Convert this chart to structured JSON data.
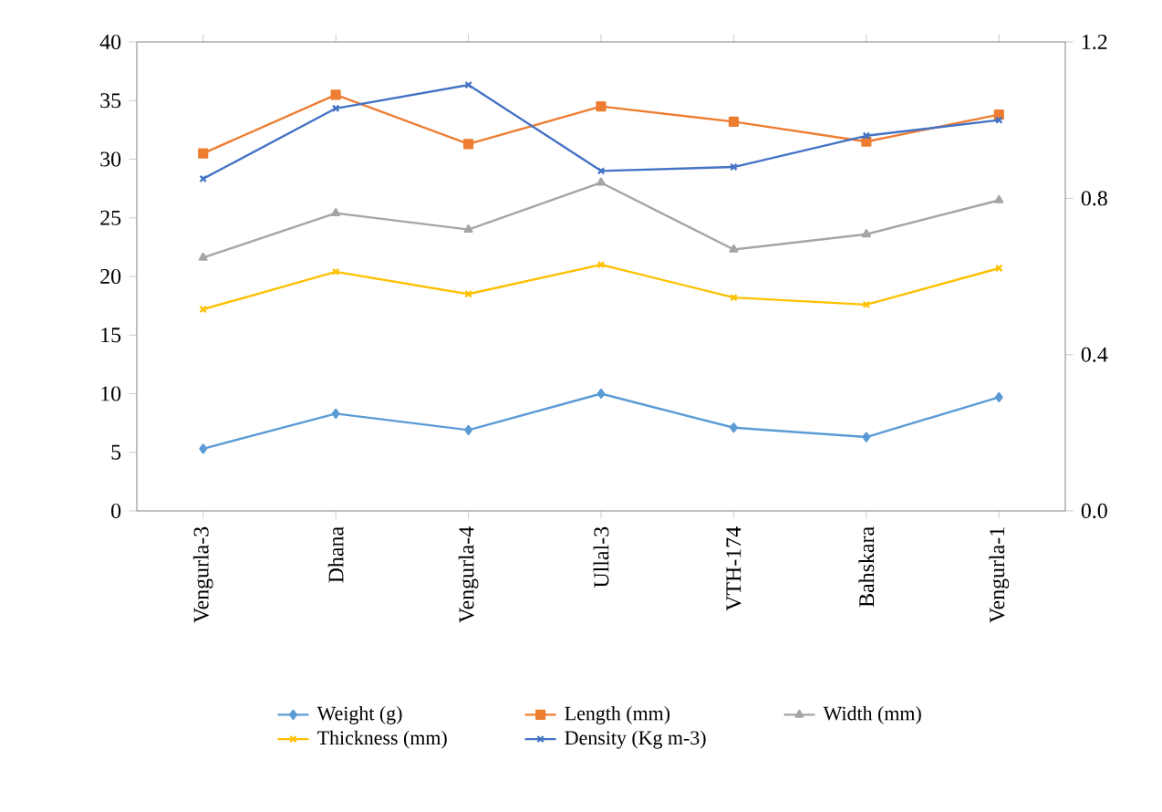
{
  "chart_data": {
    "type": "line",
    "categories": [
      "Vengurla-3",
      "Dhana",
      "Vengurla-4",
      "Ullal-3",
      "VTH-174",
      "Bahskara",
      "Vengurla-1"
    ],
    "series": [
      {
        "name": "Weight (g)",
        "color": "#5b9bd5",
        "marker": "diamond",
        "values": [
          5.3,
          8.3,
          6.9,
          10.0,
          7.1,
          6.3,
          9.7
        ]
      },
      {
        "name": "Length (mm)",
        "color": "#ed7d31",
        "marker": "square",
        "values": [
          30.5,
          35.5,
          31.3,
          34.5,
          33.2,
          31.5,
          33.8
        ]
      },
      {
        "name": "Width (mm)",
        "color": "#a5a5a5",
        "marker": "triangle",
        "values": [
          21.6,
          25.4,
          24.0,
          28.0,
          22.3,
          23.6,
          26.5
        ]
      },
      {
        "name": "Thickness (mm)",
        "color": "#ffc000",
        "marker": "cross",
        "values": [
          17.2,
          20.4,
          18.5,
          21.0,
          18.2,
          17.6,
          20.7
        ]
      },
      {
        "name": "Density (Kg m-3)",
        "color": "#4472c4",
        "marker": "cross",
        "axis": "y2",
        "values": [
          0.85,
          1.03,
          1.09,
          0.87,
          0.88,
          0.96,
          1.0
        ]
      }
    ],
    "ylim": [
      0,
      40
    ],
    "yticks": [
      0,
      5,
      10,
      15,
      20,
      25,
      30,
      35,
      40
    ],
    "y2lim": [
      0,
      1.2
    ],
    "y2ticks": [
      {
        "value": 0,
        "label": "0.0"
      },
      {
        "value": 0.4,
        "label": "0.4"
      },
      {
        "value": 0.8,
        "label": "0.8"
      },
      {
        "value": 1.2,
        "label": "1.2"
      }
    ],
    "grid": false,
    "legend": "bottom",
    "line_style": "solid"
  }
}
